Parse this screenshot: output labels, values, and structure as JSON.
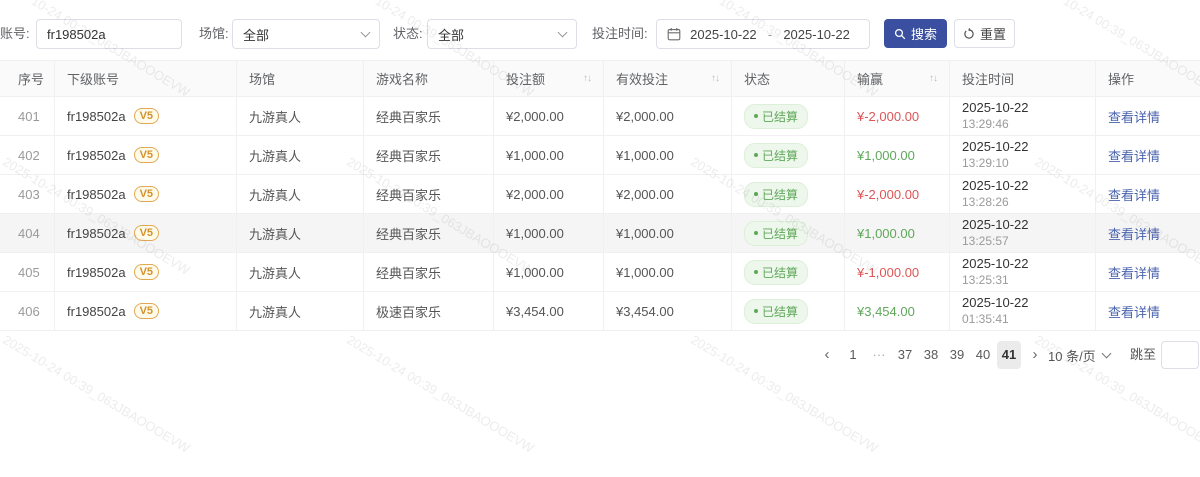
{
  "watermark": {
    "text": "2025-10-24 00:39_063JBAOOOEVW"
  },
  "filters": {
    "account_label": "账号:",
    "account_value": "fr198502a",
    "venue_label": "场馆:",
    "venue_value": "全部",
    "status_label": "状态:",
    "status_value": "全部",
    "time_label": "投注时间:",
    "date_start": "2025-10-22",
    "date_separator": "-",
    "date_end": "2025-10-22",
    "search_label": "搜索",
    "reset_label": "重置"
  },
  "table": {
    "headers": [
      {
        "label": "序号"
      },
      {
        "label": "下级账号"
      },
      {
        "label": "场馆"
      },
      {
        "label": "游戏名称"
      },
      {
        "label": "投注额",
        "sortable": true
      },
      {
        "label": "有效投注",
        "sortable": true
      },
      {
        "label": "状态"
      },
      {
        "label": "输赢",
        "sortable": true
      },
      {
        "label": "投注时间"
      },
      {
        "label": "操作"
      }
    ],
    "sort_icon": "↑↓",
    "rows": [
      {
        "seq": "401",
        "account": "fr198502a",
        "level": "V5",
        "venue": "九游真人",
        "game": "经典百家乐",
        "bet": "¥2,000.00",
        "valid": "¥2,000.00",
        "status": "已结算",
        "winloss": "¥-2,000.00",
        "winloss_sign": "negative",
        "date": "2025-10-22",
        "time": "13:29:46",
        "action": "查看详情",
        "highlighted": false
      },
      {
        "seq": "402",
        "account": "fr198502a",
        "level": "V5",
        "venue": "九游真人",
        "game": "经典百家乐",
        "bet": "¥1,000.00",
        "valid": "¥1,000.00",
        "status": "已结算",
        "winloss": "¥1,000.00",
        "winloss_sign": "positive",
        "date": "2025-10-22",
        "time": "13:29:10",
        "action": "查看详情",
        "highlighted": false
      },
      {
        "seq": "403",
        "account": "fr198502a",
        "level": "V5",
        "venue": "九游真人",
        "game": "经典百家乐",
        "bet": "¥2,000.00",
        "valid": "¥2,000.00",
        "status": "已结算",
        "winloss": "¥-2,000.00",
        "winloss_sign": "negative",
        "date": "2025-10-22",
        "time": "13:28:26",
        "action": "查看详情",
        "highlighted": false
      },
      {
        "seq": "404",
        "account": "fr198502a",
        "level": "V5",
        "venue": "九游真人",
        "game": "经典百家乐",
        "bet": "¥1,000.00",
        "valid": "¥1,000.00",
        "status": "已结算",
        "winloss": "¥1,000.00",
        "winloss_sign": "positive",
        "date": "2025-10-22",
        "time": "13:25:57",
        "action": "查看详情",
        "highlighted": true
      },
      {
        "seq": "405",
        "account": "fr198502a",
        "level": "V5",
        "venue": "九游真人",
        "game": "经典百家乐",
        "bet": "¥1,000.00",
        "valid": "¥1,000.00",
        "status": "已结算",
        "winloss": "¥-1,000.00",
        "winloss_sign": "negative",
        "date": "2025-10-22",
        "time": "13:25:31",
        "action": "查看详情",
        "highlighted": false
      },
      {
        "seq": "406",
        "account": "fr198502a",
        "level": "V5",
        "venue": "九游真人",
        "game": "极速百家乐",
        "bet": "¥3,454.00",
        "valid": "¥3,454.00",
        "status": "已结算",
        "winloss": "¥3,454.00",
        "winloss_sign": "positive",
        "date": "2025-10-22",
        "time": "01:35:41",
        "action": "查看详情",
        "highlighted": false
      }
    ]
  },
  "pagination": {
    "prev": "‹",
    "pages": [
      "1",
      "···",
      "37",
      "38",
      "39",
      "40",
      "41"
    ],
    "active_page": "41",
    "next": "›",
    "page_size": "10 条/页",
    "jump_label": "跳至",
    "jump_value": ""
  },
  "colors": {
    "primary": "#3a4f9f",
    "positive": "#5fa85a",
    "negative": "#dd5555",
    "link": "#4a63ad"
  }
}
